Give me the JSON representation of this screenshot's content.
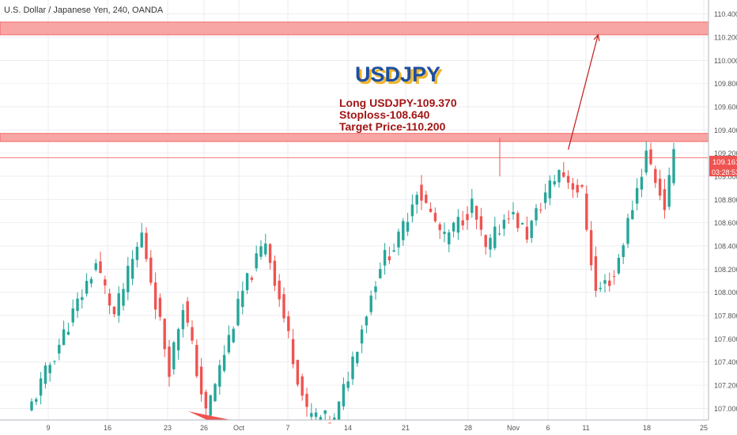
{
  "header": {
    "symbol_label": "U.S. Dollar / Japanese Yen, 240, OANDA"
  },
  "annotations": {
    "title": "USDJPY",
    "line1": "Long USDJPY-109.370",
    "line2": "Stoploss-108.640",
    "line3": "Target Price-110.200"
  },
  "price_tags": {
    "last_price": "109.161",
    "countdown": "03:28:53"
  },
  "colors": {
    "up": "#26a69a",
    "down": "#ef5350",
    "zone_fill": "#f8a5a5",
    "zone_border": "#ef5350",
    "arrow": "#c62828",
    "title_blue": "#1e4fa0",
    "title_shadow": "#f0b429",
    "note_red": "#a31515",
    "price_tag_bg": "#ef5350",
    "axis_text": "#555555",
    "grid": "#e1e3ea"
  },
  "chart_data": {
    "type": "candlestick",
    "instrument": "U.S. Dollar / Japanese Yen",
    "timeframe": "240",
    "source": "OANDA",
    "x_tick_labels": [
      "9",
      "16",
      "23",
      "26",
      "Oct",
      "7",
      "14",
      "21",
      "28",
      "Nov",
      "6",
      "11",
      "18",
      "25"
    ],
    "y_ticks": [
      "107.000",
      "107.200",
      "107.400",
      "107.600",
      "107.800",
      "108.000",
      "108.200",
      "108.400",
      "108.600",
      "108.800",
      "109.000",
      "109.200",
      "109.400",
      "109.600",
      "109.800",
      "110.000",
      "110.200",
      "110.400"
    ],
    "ylim": [
      106.9,
      110.52
    ],
    "zones": [
      {
        "name": "target zone",
        "from": 110.22,
        "to": 110.33
      },
      {
        "name": "entry zone",
        "from": 109.3,
        "to": 109.37
      }
    ],
    "horizontal_lines": [
      {
        "name": "current price",
        "value": 109.161
      }
    ],
    "trend_arrow": {
      "from_index": 117,
      "from_price": 109.23,
      "to_index": 123.5,
      "to_price": 110.22
    },
    "segments": [
      {
        "start": 106.95,
        "end": 108.25,
        "bars": 15
      },
      {
        "start": 108.25,
        "end": 107.8,
        "bars": 4
      },
      {
        "start": 107.8,
        "end": 108.5,
        "bars": 6
      },
      {
        "start": 108.5,
        "end": 107.35,
        "bars": 6
      },
      {
        "start": 107.35,
        "end": 107.9,
        "bars": 3
      },
      {
        "start": 107.9,
        "end": 106.95,
        "bars": 5
      },
      {
        "start": 106.95,
        "end": 108.0,
        "bars": 8
      },
      {
        "start": 108.0,
        "end": 108.45,
        "bars": 5
      },
      {
        "start": 108.45,
        "end": 106.95,
        "bars": 9
      },
      {
        "start": 106.95,
        "end": 106.88,
        "bars": 6
      },
      {
        "start": 106.88,
        "end": 108.25,
        "bars": 10
      },
      {
        "start": 108.25,
        "end": 108.45,
        "bars": 4
      },
      {
        "start": 108.45,
        "end": 108.9,
        "bars": 4
      },
      {
        "start": 108.9,
        "end": 108.45,
        "bars": 6
      },
      {
        "start": 108.45,
        "end": 108.75,
        "bars": 6
      },
      {
        "start": 108.75,
        "end": 108.35,
        "bars": 3
      },
      {
        "start": 108.35,
        "end": 108.7,
        "bars": 5
      },
      {
        "start": 108.7,
        "end": 108.5,
        "bars": 4
      },
      {
        "start": 108.5,
        "end": 108.85,
        "bars": 4
      },
      {
        "start": 108.85,
        "end": 109.05,
        "bars": 3
      },
      {
        "start": 109.05,
        "end": 108.85,
        "bars": 5
      },
      {
        "start": 108.85,
        "end": 108.0,
        "bars": 3
      },
      {
        "start": 108.0,
        "end": 108.15,
        "bars": 4
      },
      {
        "start": 108.15,
        "end": 109.2,
        "bars": 7
      },
      {
        "start": 109.2,
        "end": 108.75,
        "bars": 4
      },
      {
        "start": 108.75,
        "end": 109.16,
        "bars": 2
      }
    ]
  }
}
